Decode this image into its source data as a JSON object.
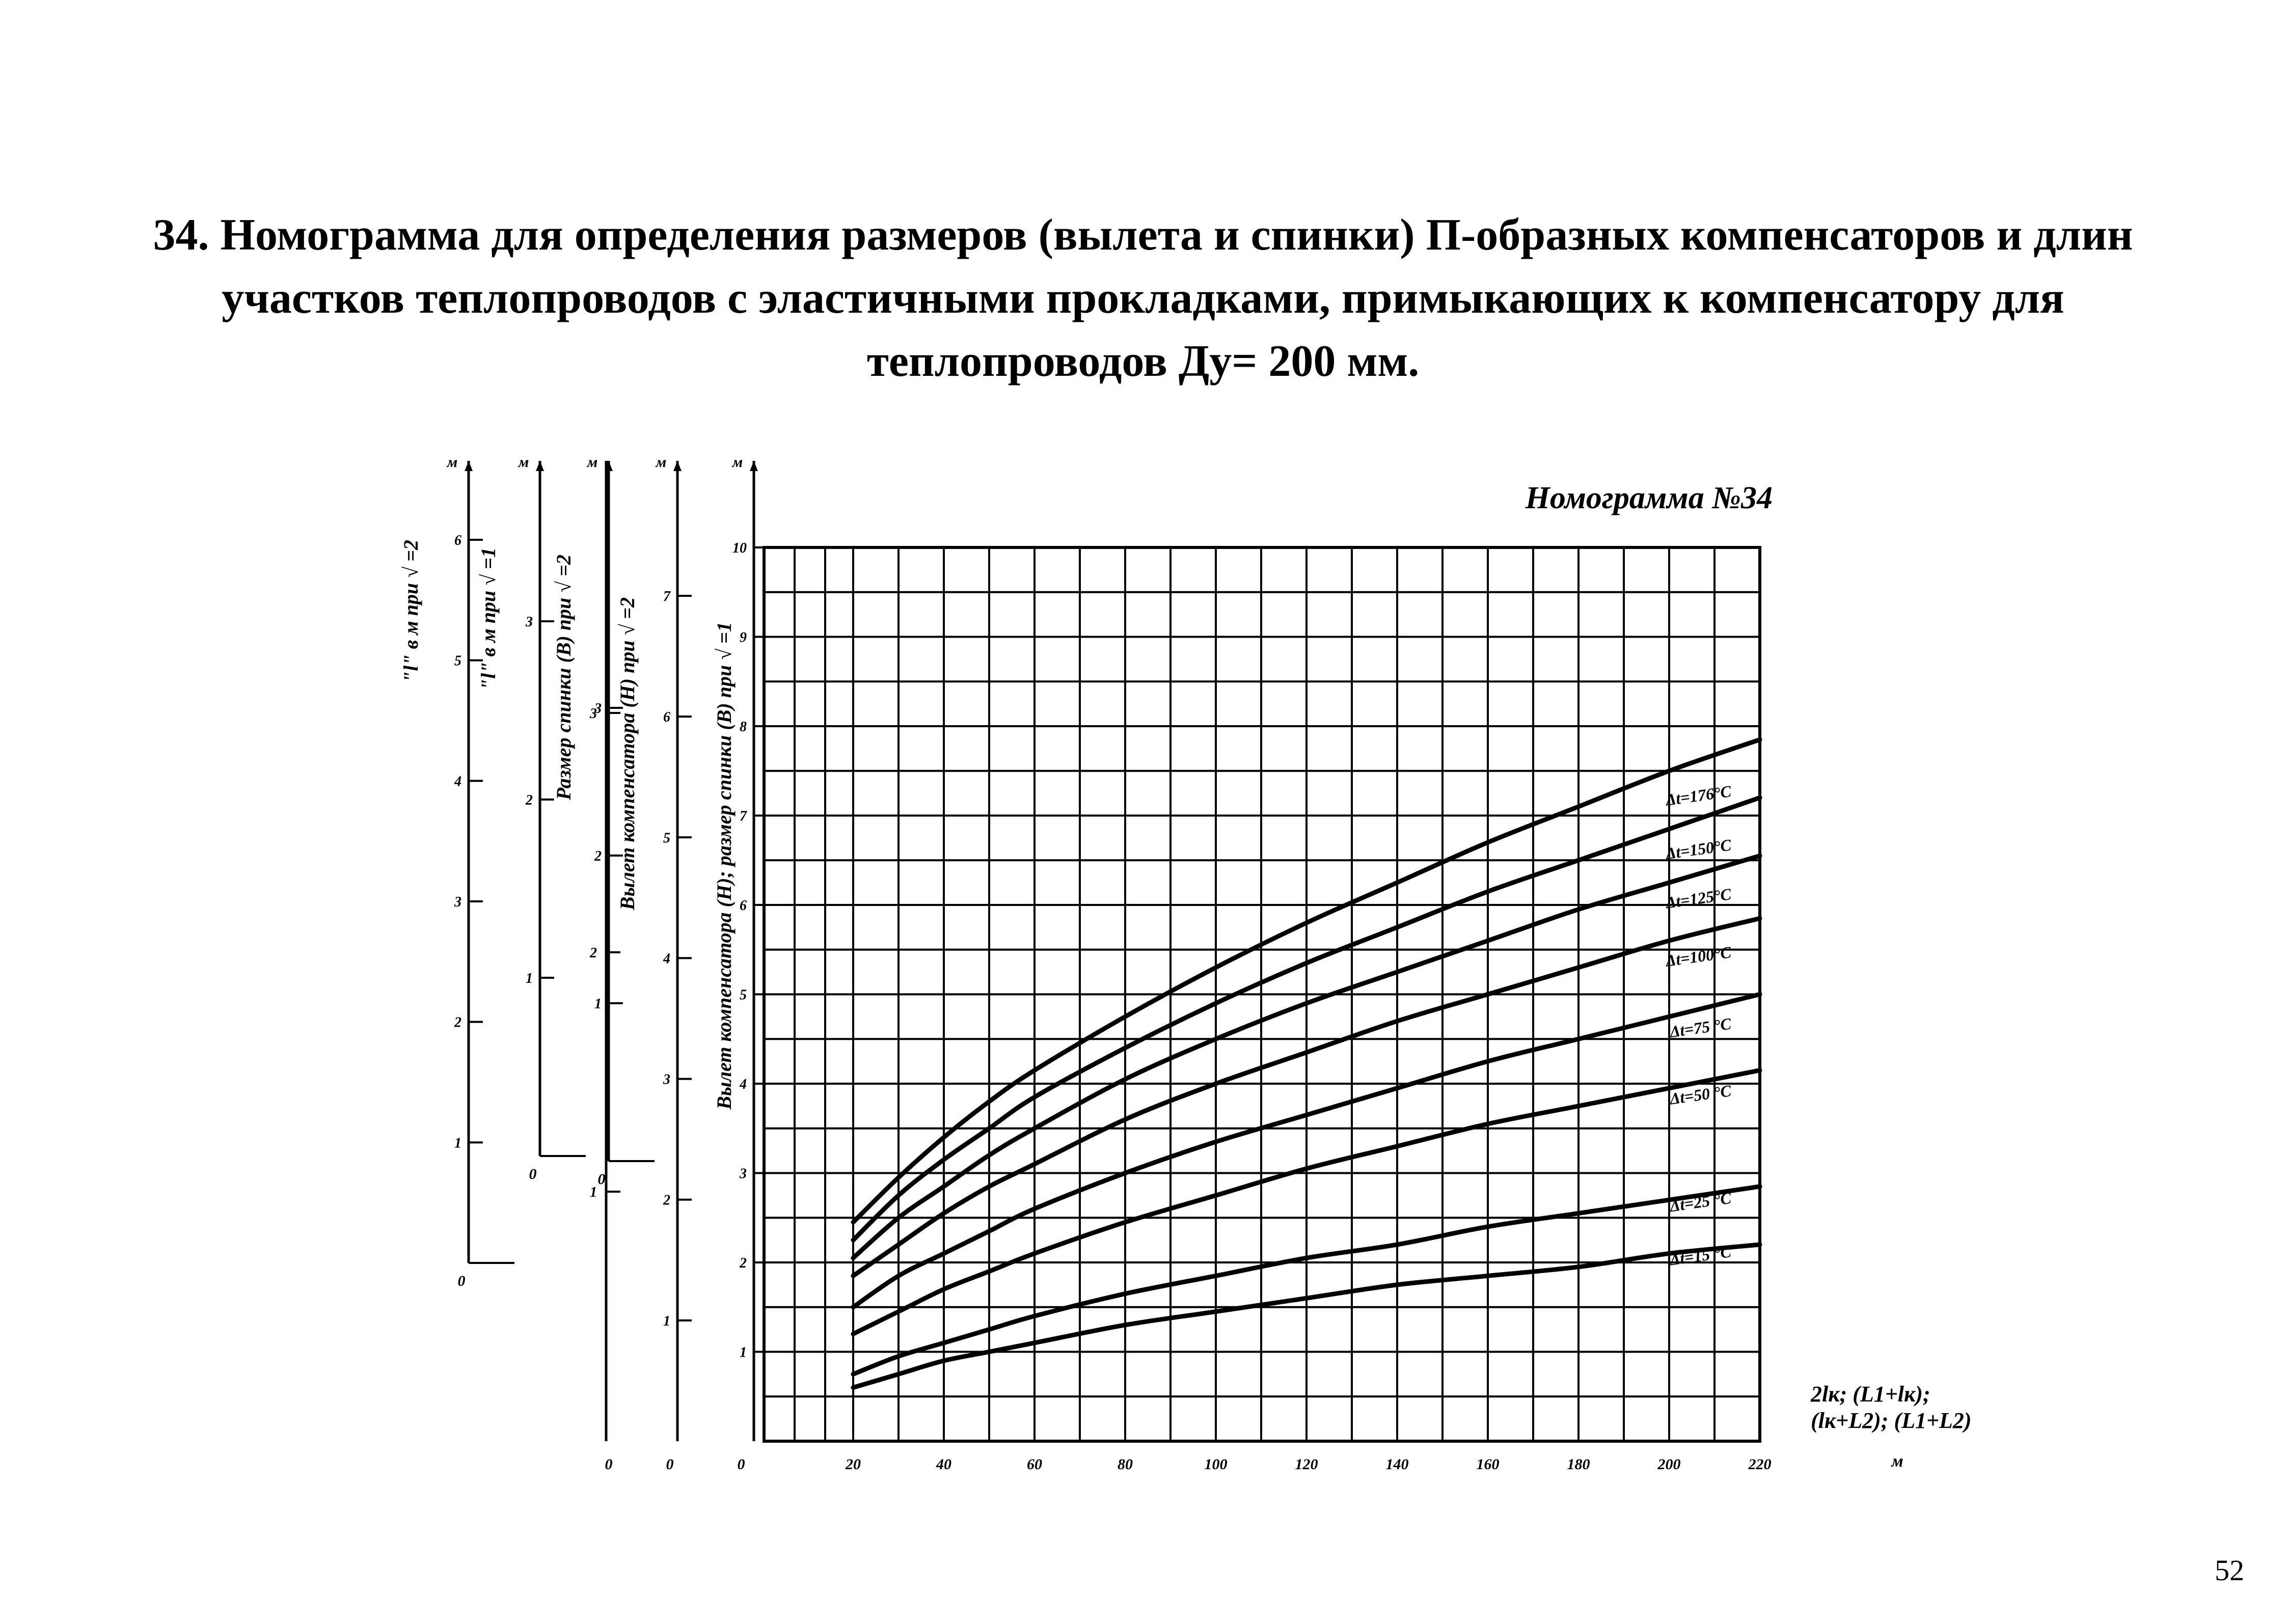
{
  "title_lines": [
    "34. Номограмма для  определения размеров (вылета  и  спинки)  П-образных компенсаторов  и длин",
    "участков  теплопроводов  с  эластичными прокладками, примыкающих  к  компенсатору  для",
    "теплопроводов  Ду= 200 мм."
  ],
  "page_number": "52",
  "chart_data": {
    "type": "line",
    "title": "Номограмма №34",
    "xlabel": "2lк; (L1+lк); (lк+L2); (L1+L2)",
    "xlabel_lines": [
      "2lк; (L1+lк);",
      "(lк+L2); (L1+L2)"
    ],
    "x_unit": "м",
    "xlim": [
      20,
      220
    ],
    "ylim": [
      0,
      10
    ],
    "x_ticks": [
      "20",
      "40",
      "60",
      "80",
      "100",
      "120",
      "140",
      "160",
      "180",
      "200",
      "220"
    ],
    "grid": true,
    "x": [
      20,
      30,
      40,
      50,
      60,
      80,
      100,
      120,
      140,
      160,
      180,
      200,
      220
    ],
    "series": [
      {
        "name": "Δt=176°C",
        "label": "Δt=176°C",
        "values": [
          2.45,
          2.95,
          3.4,
          3.8,
          4.15,
          4.75,
          5.3,
          5.8,
          6.25,
          6.7,
          7.1,
          7.5,
          7.85
        ]
      },
      {
        "name": "Δt=150°C",
        "label": "Δt=150°C",
        "values": [
          2.25,
          2.75,
          3.15,
          3.5,
          3.85,
          4.4,
          4.9,
          5.35,
          5.75,
          6.15,
          6.5,
          6.85,
          7.2
        ]
      },
      {
        "name": "Δt=125°C",
        "label": "Δt=125°C",
        "values": [
          2.05,
          2.5,
          2.85,
          3.2,
          3.5,
          4.05,
          4.5,
          4.9,
          5.25,
          5.6,
          5.95,
          6.25,
          6.55
        ]
      },
      {
        "name": "Δt=100°C",
        "label": "Δt=100°C",
        "values": [
          1.85,
          2.2,
          2.55,
          2.85,
          3.1,
          3.6,
          4.0,
          4.35,
          4.7,
          5.0,
          5.3,
          5.6,
          5.85
        ]
      },
      {
        "name": "Δt=75 °C",
        "label": "Δt=75 °C",
        "values": [
          1.5,
          1.85,
          2.1,
          2.35,
          2.6,
          3.0,
          3.35,
          3.65,
          3.95,
          4.25,
          4.5,
          4.75,
          5.0
        ]
      },
      {
        "name": "Δt=50 °C",
        "label": "Δt=50 °C",
        "values": [
          1.2,
          1.45,
          1.7,
          1.9,
          2.1,
          2.45,
          2.75,
          3.05,
          3.3,
          3.55,
          3.75,
          3.95,
          4.15
        ]
      },
      {
        "name": "Δt=25 °C",
        "label": "Δt=25 °C",
        "values": [
          0.75,
          0.95,
          1.1,
          1.25,
          1.4,
          1.65,
          1.85,
          2.05,
          2.2,
          2.4,
          2.55,
          2.7,
          2.85
        ]
      },
      {
        "name": "Δt=15 °C",
        "label": "Δt=15 °C",
        "values": [
          0.6,
          0.75,
          0.9,
          1.0,
          1.1,
          1.3,
          1.45,
          1.6,
          1.75,
          1.85,
          1.95,
          2.1,
          2.2
        ]
      }
    ],
    "scales": [
      {
        "id": "s1",
        "label": "\"l\" в м при  √ =2",
        "unit": "м",
        "min": 0,
        "max": 6.2,
        "ticks": [
          "0",
          "1",
          "2",
          "3",
          "4",
          "5",
          "6"
        ]
      },
      {
        "id": "s2",
        "label": "\"l\" в м при  √ =1",
        "unit": "м",
        "min": 0,
        "max": 3.9,
        "ticks": [
          "0",
          "1",
          "2",
          "3"
        ]
      },
      {
        "id": "s3",
        "label": "Размер спинки (B) при √ =2",
        "unit": "м",
        "min": 0,
        "max": 3.7,
        "ticks": [
          "0",
          "1",
          "2",
          "3"
        ]
      },
      {
        "id": "s4",
        "label": "Вылет компенсатора (H) при √ =2",
        "unit": "м",
        "min": 0,
        "max": 7.9,
        "ticks": [
          "0",
          "1",
          "2",
          "3",
          "4",
          "5",
          "6",
          "7"
        ]
      },
      {
        "id": "s5",
        "label": "Вылет компенсатора (H); размер спинки (B) при √ =1",
        "unit": "м",
        "min": 0,
        "max": 10,
        "ticks": [
          "0",
          "1",
          "2",
          "3",
          "4",
          "5",
          "6",
          "7",
          "8",
          "9",
          "10"
        ]
      }
    ]
  }
}
